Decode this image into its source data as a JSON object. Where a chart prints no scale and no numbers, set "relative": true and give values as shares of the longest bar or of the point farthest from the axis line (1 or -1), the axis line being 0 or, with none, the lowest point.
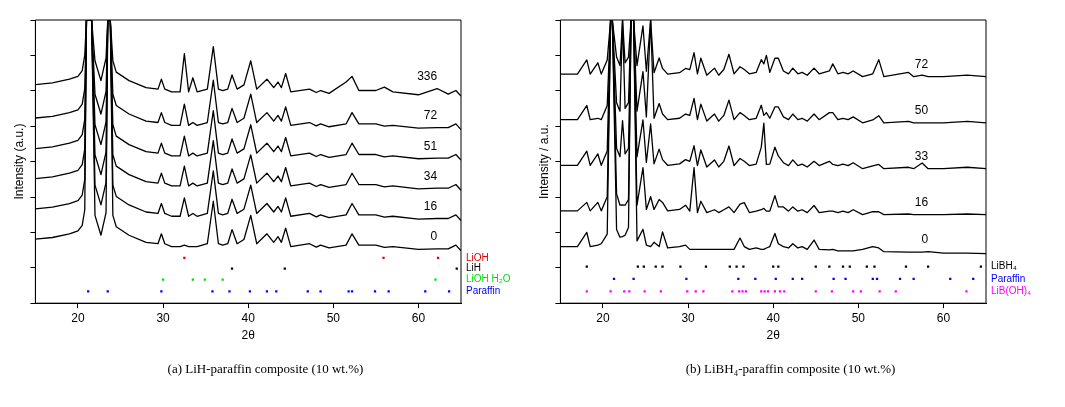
{
  "chart_data": [
    {
      "type": "line",
      "xlabel": "2θ",
      "ylabel": "Intensity (a.u.)",
      "xlim": [
        15,
        65
      ],
      "xticks": [
        20,
        30,
        40,
        50,
        60
      ],
      "relative": true,
      "legend": "right",
      "grid": false,
      "annotations": [
        "(a) LiH-paraffin composite (10 wt.%)"
      ],
      "x": [
        15,
        17,
        19,
        20,
        20.5,
        20.8,
        21.0,
        21.6,
        22,
        22.7,
        23.3,
        23.5,
        23.8,
        24.1,
        24.5,
        26,
        28,
        29.4,
        29.8,
        30.2,
        31,
        32,
        32.5,
        33,
        33.5,
        34,
        35.2,
        35.9,
        36.5,
        37,
        37.6,
        38.1,
        38.7,
        39.5,
        40.3,
        41,
        42.2,
        43,
        43.5,
        43.9,
        44.4,
        45,
        47.2,
        48,
        48.5,
        49.5,
        51.5,
        52.2,
        53,
        55,
        56,
        57,
        60,
        62.2,
        63.5,
        64.4,
        65
      ],
      "series": [
        {
          "name": "0",
          "color": "#000000",
          "values": [
            0.226,
            0.232,
            0.245,
            0.255,
            0.275,
            0.33,
            1,
            1,
            0.31,
            0.24,
            0.32,
            1,
            1,
            0.31,
            0.27,
            0.24,
            0.215,
            0.21,
            0.245,
            0.21,
            0.2,
            0.2,
            0.205,
            0.2,
            0.2,
            0.2,
            0.21,
            0.36,
            0.21,
            0.205,
            0.21,
            0.26,
            0.21,
            0.225,
            0.31,
            0.21,
            0.245,
            0.215,
            0.235,
            0.215,
            0.265,
            0.2,
            0.21,
            0.198,
            0.205,
            0.195,
            0.205,
            0.245,
            0.205,
            0.205,
            0.197,
            0.2,
            0.19,
            0.192,
            0.192,
            0.205,
            0.185
          ]
        },
        {
          "name": "16",
          "color": "#000000",
          "values": [
            0.333,
            0.339,
            0.352,
            0.362,
            0.382,
            0.437,
            1,
            1,
            0.417,
            0.347,
            0.427,
            1,
            1,
            0.417,
            0.377,
            0.347,
            0.322,
            0.317,
            0.352,
            0.317,
            0.307,
            0.307,
            0.372,
            0.307,
            0.317,
            0.307,
            0.317,
            0.467,
            0.317,
            0.312,
            0.317,
            0.367,
            0.317,
            0.332,
            0.417,
            0.317,
            0.352,
            0.322,
            0.342,
            0.322,
            0.372,
            0.307,
            0.317,
            0.305,
            0.312,
            0.302,
            0.312,
            0.352,
            0.312,
            0.312,
            0.304,
            0.307,
            0.297,
            0.299,
            0.299,
            0.312,
            0.292
          ]
        },
        {
          "name": "34",
          "color": "#000000",
          "values": [
            0.44,
            0.446,
            0.459,
            0.469,
            0.489,
            0.544,
            1,
            1,
            0.524,
            0.454,
            0.534,
            1,
            1,
            0.524,
            0.484,
            0.454,
            0.429,
            0.424,
            0.459,
            0.424,
            0.414,
            0.414,
            0.484,
            0.414,
            0.424,
            0.414,
            0.424,
            0.574,
            0.424,
            0.419,
            0.424,
            0.474,
            0.424,
            0.439,
            0.524,
            0.424,
            0.459,
            0.429,
            0.449,
            0.429,
            0.479,
            0.414,
            0.424,
            0.412,
            0.419,
            0.409,
            0.419,
            0.459,
            0.419,
            0.419,
            0.411,
            0.414,
            0.404,
            0.406,
            0.406,
            0.419,
            0.399
          ]
        },
        {
          "name": "51",
          "color": "#000000",
          "values": [
            0.546,
            0.552,
            0.565,
            0.575,
            0.595,
            0.65,
            1,
            1,
            0.63,
            0.56,
            0.64,
            1,
            1,
            0.63,
            0.59,
            0.56,
            0.535,
            0.53,
            0.565,
            0.53,
            0.52,
            0.52,
            0.59,
            0.52,
            0.53,
            0.52,
            0.53,
            0.68,
            0.53,
            0.525,
            0.53,
            0.58,
            0.53,
            0.545,
            0.63,
            0.53,
            0.565,
            0.535,
            0.555,
            0.535,
            0.585,
            0.52,
            0.53,
            0.518,
            0.525,
            0.515,
            0.525,
            0.565,
            0.525,
            0.525,
            0.517,
            0.52,
            0.51,
            0.512,
            0.512,
            0.525,
            0.505
          ]
        },
        {
          "name": "72",
          "color": "#000000",
          "values": [
            0.654,
            0.66,
            0.673,
            0.683,
            0.703,
            0.758,
            1,
            1,
            0.738,
            0.668,
            0.748,
            1,
            1,
            0.738,
            0.698,
            0.668,
            0.643,
            0.638,
            0.673,
            0.638,
            0.628,
            0.628,
            0.703,
            0.628,
            0.638,
            0.628,
            0.638,
            0.788,
            0.638,
            0.633,
            0.638,
            0.688,
            0.638,
            0.653,
            0.738,
            0.638,
            0.673,
            0.643,
            0.663,
            0.643,
            0.693,
            0.628,
            0.638,
            0.626,
            0.633,
            0.623,
            0.633,
            0.673,
            0.633,
            0.633,
            0.625,
            0.628,
            0.618,
            0.62,
            0.62,
            0.633,
            0.613
          ]
        },
        {
          "name": "336",
          "color": "#000000",
          "values": [
            0.772,
            0.778,
            0.791,
            0.801,
            0.821,
            0.876,
            1,
            1,
            0.856,
            0.786,
            0.866,
            1,
            1,
            0.856,
            0.816,
            0.786,
            0.761,
            0.756,
            0.791,
            0.756,
            0.746,
            0.746,
            0.881,
            0.746,
            0.796,
            0.746,
            0.756,
            0.906,
            0.756,
            0.751,
            0.756,
            0.806,
            0.756,
            0.771,
            0.856,
            0.756,
            0.791,
            0.761,
            0.781,
            0.761,
            0.811,
            0.746,
            0.756,
            0.744,
            0.751,
            0.741,
            0.781,
            0.801,
            0.751,
            0.751,
            0.763,
            0.746,
            0.736,
            0.758,
            0.738,
            0.751,
            0.731
          ]
        },
        {
          "name": "LiOH",
          "type": "scatter",
          "marker": "square",
          "color": "#e00000",
          "x": [
            32.5,
            55.9,
            62.3
          ],
          "values": [
            0.16,
            0.16,
            0.16
          ]
        },
        {
          "name": "LiH",
          "type": "scatter",
          "marker": "square",
          "color": "#000000",
          "x": [
            38.1,
            44.3,
            64.5
          ],
          "values": [
            0.122,
            0.122,
            0.122
          ]
        },
        {
          "name": "LiOH H₂O",
          "type": "scatter",
          "marker": "square",
          "color": "#00e000",
          "x": [
            30.0,
            33.5,
            34.9,
            37.0,
            62.0
          ],
          "values": [
            0.083,
            0.083,
            0.083,
            0.083,
            0.083
          ]
        },
        {
          "name": "Paraffin",
          "type": "scatter",
          "marker": "square",
          "color": "#0000ff",
          "x": [
            21.2,
            23.5,
            29.8,
            35.8,
            37.8,
            40.2,
            42.2,
            43.3,
            47.0,
            48.5,
            51.8,
            52.2,
            54.9,
            56.5,
            60.8,
            63.6
          ],
          "values": [
            0.042,
            0.042,
            0.042,
            0.042,
            0.042,
            0.042,
            0.042,
            0.042,
            0.042,
            0.042,
            0.042,
            0.042,
            0.042,
            0.042,
            0.042,
            0.042
          ]
        }
      ]
    },
    {
      "type": "line",
      "xlabel": "2θ",
      "ylabel": "Intensity / a.u.",
      "xlim": [
        15,
        65
      ],
      "xticks": [
        20,
        30,
        40,
        50,
        60
      ],
      "relative": true,
      "legend": "right",
      "grid": false,
      "annotations": [
        "(b) LiBH₄-paraffin composite (10 wt.%)"
      ],
      "x": [
        15,
        17,
        18.1,
        18.5,
        19.4,
        19.8,
        20.5,
        20.9,
        21.1,
        21.6,
        22.0,
        22.3,
        22.6,
        23.0,
        23.3,
        23.6,
        24.0,
        24.7,
        25.1,
        25.6,
        26.0,
        26.6,
        27.0,
        27.6,
        29.0,
        29.7,
        30.2,
        30.7,
        31.1,
        31.5,
        32.2,
        33.1,
        33.6,
        34.2,
        34.8,
        35.4,
        36.1,
        36.6,
        37.2,
        38.0,
        38.6,
        38.9,
        39.2,
        39.6,
        40.2,
        40.6,
        41.2,
        41.8,
        42.3,
        42.9,
        43.4,
        44.0,
        44.8,
        45.4,
        46.6,
        47.0,
        47.6,
        48.2,
        48.8,
        49.4,
        50.5,
        51.7,
        52.4,
        53.0,
        55.9,
        56.5,
        57.5,
        58.2,
        60,
        62.8,
        65
      ],
      "series": [
        {
          "name": "0",
          "color": "#000000",
          "values": [
            0.2,
            0.2,
            0.25,
            0.2,
            0.205,
            0.21,
            0.244,
            1,
            1,
            0.26,
            0.233,
            0.235,
            0.24,
            0.267,
            1,
            1,
            0.22,
            0.261,
            0.205,
            0.2,
            0.215,
            0.2,
            0.252,
            0.195,
            0.2,
            0.205,
            0.19,
            0.19,
            0.19,
            0.19,
            0.19,
            0.19,
            0.19,
            0.19,
            0.19,
            0.19,
            0.23,
            0.2,
            0.19,
            0.195,
            0.19,
            0.19,
            0.195,
            0.2,
            0.246,
            0.21,
            0.2,
            0.195,
            0.21,
            0.195,
            0.2,
            0.19,
            0.223,
            0.19,
            0.188,
            0.19,
            0.185,
            0.185,
            0.185,
            0.185,
            0.19,
            0.2,
            0.195,
            0.182,
            0.18,
            0.18,
            0.18,
            0.182,
            0.177,
            0.177,
            0.175
          ]
        },
        {
          "name": "16",
          "color": "#000000",
          "values": [
            0.326,
            0.326,
            0.356,
            0.326,
            0.356,
            0.326,
            0.376,
            1,
            1,
            0.386,
            0.346,
            0.347,
            0.346,
            0.366,
            1,
            1,
            0.346,
            0.479,
            0.331,
            0.376,
            0.331,
            0.366,
            0.356,
            0.326,
            0.331,
            0.346,
            0.325,
            0.479,
            0.32,
            0.36,
            0.32,
            0.33,
            0.32,
            0.33,
            0.34,
            0.32,
            0.35,
            0.355,
            0.32,
            0.325,
            0.33,
            0.335,
            0.325,
            0.325,
            0.38,
            0.34,
            0.34,
            0.325,
            0.34,
            0.325,
            0.33,
            0.32,
            0.345,
            0.32,
            0.325,
            0.325,
            0.32,
            0.325,
            0.32,
            0.33,
            0.313,
            0.323,
            0.323,
            0.313,
            0.315,
            0.313,
            0.313,
            0.313,
            0.313,
            0.315,
            0.313
          ]
        },
        {
          "name": "33",
          "color": "#000000",
          "values": [
            0.487,
            0.487,
            0.537,
            0.487,
            0.527,
            0.487,
            0.537,
            1,
            1,
            0.547,
            0.517,
            0.645,
            0.527,
            0.547,
            1,
            1,
            0.517,
            0.647,
            0.497,
            0.633,
            0.492,
            0.544,
            0.507,
            0.487,
            0.492,
            0.507,
            0.501,
            0.556,
            0.486,
            0.541,
            0.481,
            0.506,
            0.481,
            0.501,
            0.555,
            0.486,
            0.511,
            0.501,
            0.486,
            0.491,
            0.551,
            0.636,
            0.49,
            0.491,
            0.551,
            0.52,
            0.496,
            0.486,
            0.506,
            0.486,
            0.491,
            0.481,
            0.501,
            0.486,
            0.501,
            0.49,
            0.486,
            0.491,
            0.486,
            0.496,
            0.475,
            0.485,
            0.49,
            0.475,
            0.48,
            0.475,
            0.495,
            0.475,
            0.475,
            0.48,
            0.475
          ]
        },
        {
          "name": "50",
          "color": "#000000",
          "values": [
            0.648,
            0.648,
            0.698,
            0.648,
            0.653,
            0.648,
            0.698,
            1,
            1,
            0.708,
            0.678,
            1,
            0.688,
            0.708,
            1,
            1,
            0.678,
            0.818,
            0.658,
            1,
            0.653,
            0.705,
            0.668,
            0.648,
            0.653,
            0.668,
            0.663,
            0.723,
            0.648,
            0.703,
            0.643,
            0.668,
            0.643,
            0.663,
            0.717,
            0.648,
            0.673,
            0.663,
            0.648,
            0.653,
            0.699,
            0.663,
            0.673,
            0.653,
            0.693,
            0.693,
            0.658,
            0.648,
            0.668,
            0.648,
            0.653,
            0.643,
            0.668,
            0.648,
            0.673,
            0.673,
            0.648,
            0.653,
            0.648,
            0.658,
            0.637,
            0.647,
            0.662,
            0.637,
            0.642,
            0.637,
            0.637,
            0.637,
            0.637,
            0.642,
            0.637
          ]
        },
        {
          "name": "72",
          "color": "#000000",
          "values": [
            0.809,
            0.809,
            0.859,
            0.809,
            0.849,
            0.809,
            0.859,
            1,
            1,
            0.869,
            0.839,
            1,
            0.849,
            0.869,
            1,
            1,
            0.839,
            0.979,
            0.819,
            1,
            0.814,
            0.866,
            0.829,
            0.809,
            0.814,
            0.829,
            0.825,
            0.885,
            0.81,
            0.865,
            0.805,
            0.83,
            0.805,
            0.825,
            0.879,
            0.81,
            0.835,
            0.825,
            0.81,
            0.815,
            0.86,
            0.845,
            0.875,
            0.815,
            0.865,
            0.865,
            0.82,
            0.81,
            0.83,
            0.81,
            0.815,
            0.805,
            0.83,
            0.81,
            0.82,
            0.845,
            0.81,
            0.815,
            0.81,
            0.82,
            0.8,
            0.81,
            0.86,
            0.8,
            0.815,
            0.8,
            0.805,
            0.8,
            0.8,
            0.805,
            0.8
          ]
        },
        {
          "name": "LiBH₄",
          "type": "scatter",
          "marker": "square",
          "color": "#000000",
          "x": [
            18.1,
            24.1,
            24.8,
            26.2,
            27.0,
            29.1,
            32.1,
            34.9,
            35.7,
            36.5,
            40.0,
            40.6,
            45.0,
            46.6,
            48.2,
            49.0,
            51.0,
            51.9,
            55.6,
            58.2,
            64.4
          ],
          "values": [
            0.129,
            0.129,
            0.129,
            0.129,
            0.129,
            0.129,
            0.129,
            0.129,
            0.129,
            0.129,
            0.129,
            0.129,
            0.129,
            0.129,
            0.129,
            0.129,
            0.129,
            0.129,
            0.129,
            0.129,
            0.129
          ]
        },
        {
          "name": "Paraffin",
          "type": "scatter",
          "marker": "square",
          "color": "#0000ff",
          "x": [
            21.3,
            23.6,
            29.8,
            35.9,
            37.9,
            40.3,
            42.3,
            43.4,
            47.1,
            48.5,
            51.7,
            52.2,
            54.9,
            56.5,
            60.8,
            63.5
          ],
          "values": [
            0.086,
            0.086,
            0.086,
            0.086,
            0.086,
            0.086,
            0.086,
            0.086,
            0.086,
            0.086,
            0.086,
            0.086,
            0.086,
            0.086,
            0.086,
            0.086
          ]
        },
        {
          "name": "LiB(OH)₄",
          "type": "scatter",
          "marker": "square",
          "color": "#ff00ff",
          "x": [
            18.1,
            20.9,
            22.5,
            23.1,
            24.9,
            26.8,
            29.9,
            30.9,
            31.8,
            35.2,
            36.0,
            36.4,
            36.8,
            38.6,
            39.0,
            39.4,
            40.2,
            40.8,
            41.3,
            45.0,
            46.9,
            49.4,
            50.3,
            52.5,
            54.4,
            62.7
          ],
          "values": [
            0.042,
            0.042,
            0.042,
            0.042,
            0.042,
            0.042,
            0.042,
            0.042,
            0.042,
            0.042,
            0.042,
            0.042,
            0.042,
            0.042,
            0.042,
            0.042,
            0.042,
            0.042,
            0.042,
            0.042,
            0.042,
            0.042,
            0.042,
            0.042,
            0.042,
            0.042
          ]
        }
      ]
    }
  ]
}
